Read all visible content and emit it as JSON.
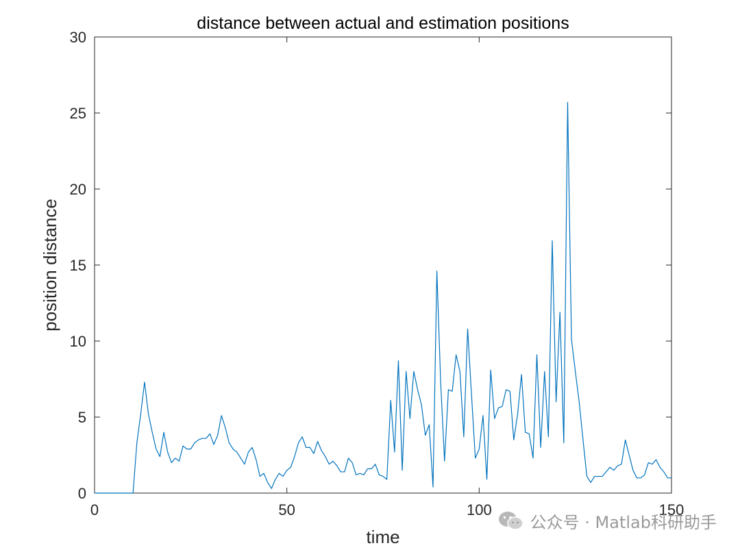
{
  "chart_data": {
    "type": "line",
    "title": "distance between actual and estimation positions",
    "xlabel": "time",
    "ylabel": "position distance",
    "xlim": [
      0,
      150
    ],
    "ylim": [
      0,
      30
    ],
    "xticks": [
      "0",
      "50",
      "100",
      "150"
    ],
    "yticks": [
      "0",
      "5",
      "10",
      "15",
      "20",
      "25",
      "30"
    ],
    "grid": false,
    "box": true,
    "line_color": "#0072BD",
    "series": [
      {
        "name": "",
        "x": [
          0,
          1,
          2,
          3,
          4,
          5,
          6,
          7,
          8,
          9,
          10,
          11,
          12,
          13,
          14,
          15,
          16,
          17,
          18,
          19,
          20,
          21,
          22,
          23,
          24,
          25,
          26,
          27,
          28,
          29,
          30,
          31,
          32,
          33,
          34,
          35,
          36,
          37,
          38,
          39,
          40,
          41,
          42,
          43,
          44,
          45,
          46,
          47,
          48,
          49,
          50,
          51,
          52,
          53,
          54,
          55,
          56,
          57,
          58,
          59,
          60,
          61,
          62,
          63,
          64,
          65,
          66,
          67,
          68,
          69,
          70,
          71,
          72,
          73,
          74,
          75,
          76,
          77,
          78,
          79,
          80,
          81,
          82,
          83,
          84,
          85,
          86,
          87,
          88,
          89,
          90,
          91,
          92,
          93,
          94,
          95,
          96,
          97,
          98,
          99,
          100,
          101,
          102,
          103,
          104,
          105,
          106,
          107,
          108,
          109,
          110,
          111,
          112,
          113,
          114,
          115,
          116,
          117,
          118,
          119,
          120,
          121,
          122,
          123,
          124,
          125,
          126,
          127,
          128,
          129,
          130,
          131,
          132,
          133,
          134,
          135,
          136,
          137,
          138,
          139,
          140,
          141,
          142,
          143,
          144,
          145,
          146,
          147,
          148,
          149,
          150
        ],
        "y": [
          0,
          0,
          0,
          0,
          0,
          0,
          0,
          0,
          0,
          0,
          0,
          3.3,
          5.2,
          7.3,
          5.2,
          4.0,
          2.9,
          2.4,
          4.0,
          2.7,
          2.0,
          2.3,
          2.1,
          3.1,
          2.9,
          2.9,
          3.3,
          3.5,
          3.6,
          3.6,
          3.9,
          3.2,
          3.8,
          5.1,
          4.3,
          3.3,
          2.9,
          2.7,
          2.3,
          1.9,
          2.7,
          3.0,
          2.2,
          1.1,
          1.3,
          0.7,
          0.3,
          0.9,
          1.3,
          1.1,
          1.5,
          1.7,
          2.4,
          3.3,
          3.7,
          3.0,
          3.0,
          2.6,
          3.4,
          2.8,
          2.4,
          1.9,
          2.1,
          1.8,
          1.4,
          1.4,
          2.3,
          2.0,
          1.2,
          1.3,
          1.2,
          1.6,
          1.6,
          1.9,
          1.2,
          1.1,
          0.9,
          6.1,
          2.7,
          8.7,
          1.5,
          8.0,
          4.9,
          8.0,
          6.8,
          5.8,
          3.8,
          4.5,
          0.4,
          14.6,
          7.2,
          2.1,
          6.8,
          6.7,
          9.1,
          8.0,
          3.7,
          10.8,
          6.5,
          2.3,
          2.9,
          5.1,
          0.9,
          8.1,
          4.9,
          5.6,
          5.7,
          6.8,
          6.7,
          3.5,
          5.2,
          7.8,
          4.0,
          3.9,
          2.3,
          9.1,
          3.0,
          8.0,
          3.7,
          16.6,
          6.0,
          11.9,
          3.3,
          25.7,
          10.1,
          8.0,
          6.0,
          3.5,
          1.1,
          0.7,
          1.1,
          1.1,
          1.1,
          1.4,
          1.7,
          1.5,
          1.8,
          1.9,
          3.5,
          2.5,
          1.5,
          1.0,
          1.0,
          1.2,
          2.0,
          1.9,
          2.2,
          1.7,
          1.4,
          1.0,
          1.0
        ]
      }
    ]
  },
  "watermark": {
    "icon": "wechat-icon",
    "text": "公众号 · Matlab科研助手"
  }
}
